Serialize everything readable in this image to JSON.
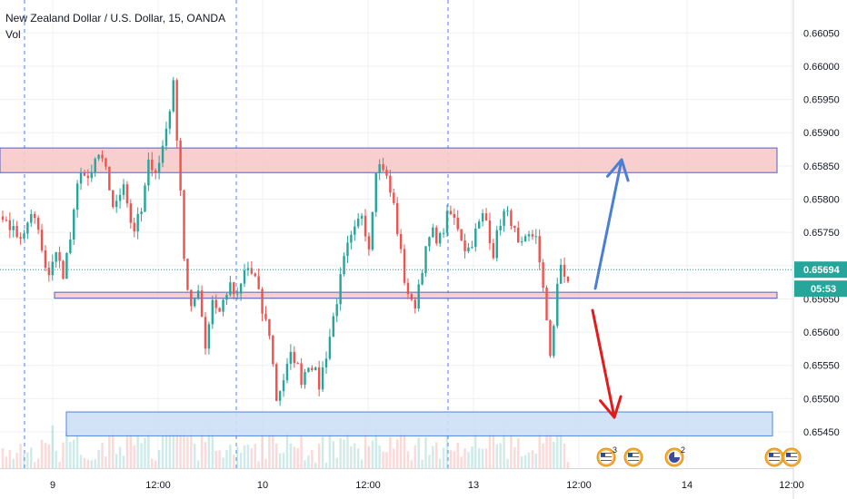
{
  "header": {
    "title": "New Zealand Dollar / U.S. Dollar, 15, OANDA",
    "volume_label": "Vol"
  },
  "colors": {
    "up": "#26a69a",
    "down": "#ef5350",
    "zone_red_fill": "#f9c9c9",
    "zone_red_border": "#3f51b5",
    "zone_blue_fill": "#cfe0f7",
    "zone_blue_border": "#3f78d8",
    "arrow_up": "#4a7fd6",
    "arrow_down": "#e31b1b",
    "current_price": "#26a69a",
    "session_line": "#2962ff",
    "grid": "#eef0f3",
    "axis_text": "#131722"
  },
  "chart_data": {
    "type": "candlestick",
    "title": "New Zealand Dollar / U.S. Dollar, 15, OANDA",
    "ylim": [
      0.6542,
      0.66075
    ],
    "y_ticks": [
      "0.65450",
      "0.65500",
      "0.65550",
      "0.65600",
      "0.65650",
      "0.65700",
      "0.65750",
      "0.65800",
      "0.65850",
      "0.65900",
      "0.65950",
      "0.66000",
      "0.66050"
    ],
    "x_ticks": [
      "9",
      "12:00",
      "10",
      "12:00",
      "13",
      "12:00",
      "14",
      "12:00"
    ],
    "current_price": {
      "value": 0.65694,
      "label": "0.65694",
      "countdown": "05:53"
    },
    "zones": [
      {
        "name": "resistance",
        "top": 0.65877,
        "bottom": 0.6584,
        "color": "red"
      },
      {
        "name": "support",
        "top": 0.6566,
        "bottom": 0.65651,
        "color": "red"
      },
      {
        "name": "demand",
        "top": 0.6548,
        "bottom": 0.65444,
        "color": "blue"
      }
    ],
    "events": [
      {
        "icon": "us-flag-icon",
        "count": "3"
      },
      {
        "icon": "us-flag-icon",
        "count": ""
      },
      {
        "icon": "clock-icon",
        "count": "2"
      },
      {
        "icon": "us-flag-icon",
        "count": ""
      },
      {
        "icon": "us-flag-icon",
        "count": ""
      }
    ],
    "candle_segments": [
      {
        "prices": [
          0.6578,
          0.6575,
          0.6577,
          0.6573,
          0.6575,
          0.6576,
          0.6578,
          0.6575
        ],
        "n": 10
      },
      {
        "prices": [
          0.6575,
          0.6568,
          0.6572,
          0.6569
        ],
        "n": 7
      },
      {
        "prices": [
          0.6569,
          0.6575,
          0.6585,
          0.6582,
          0.6587,
          0.6584
        ],
        "n": 12
      },
      {
        "prices": [
          0.6584,
          0.6578,
          0.6583,
          0.6575,
          0.6578
        ],
        "n": 10
      },
      {
        "prices": [
          0.6578,
          0.6586,
          0.6584,
          0.659,
          0.6597
        ],
        "n": 9
      },
      {
        "prices": [
          0.6597,
          0.6585,
          0.6568,
          0.6563
        ],
        "n": 5
      },
      {
        "prices": [
          0.6563,
          0.6567,
          0.6558,
          0.6565,
          0.6563
        ],
        "n": 8
      },
      {
        "prices": [
          0.6563,
          0.6567,
          0.6565,
          0.657,
          0.6568
        ],
        "n": 10
      },
      {
        "prices": [
          0.6568,
          0.6563,
          0.656,
          0.655,
          0.6553
        ],
        "n": 8
      },
      {
        "prices": [
          0.6553,
          0.6557,
          0.6553,
          0.6556,
          0.6552
        ],
        "n": 10
      },
      {
        "prices": [
          0.6552,
          0.6558,
          0.6565,
          0.6572,
          0.6575
        ],
        "n": 10
      },
      {
        "prices": [
          0.6575,
          0.6578,
          0.6573,
          0.6585,
          0.6585
        ],
        "n": 8
      },
      {
        "prices": [
          0.6585,
          0.6579,
          0.6568
        ],
        "n": 6
      },
      {
        "prices": [
          0.6568,
          0.6563,
          0.657,
          0.6575,
          0.6574
        ],
        "n": 10
      },
      {
        "prices": [
          0.6574,
          0.6578,
          0.6576,
          0.6572,
          0.6575
        ],
        "n": 10
      },
      {
        "prices": [
          0.6575,
          0.6578,
          0.6572,
          0.6578,
          0.6577
        ],
        "n": 10
      },
      {
        "prices": [
          0.6577,
          0.6572,
          0.6574,
          0.6575
        ],
        "n": 7
      },
      {
        "prices": [
          0.6575,
          0.6568,
          0.6563,
          0.6556,
          0.6565,
          0.657
        ],
        "n": 7
      },
      {
        "prices": [
          0.657,
          0.6568,
          0.6566
        ],
        "n": 3
      }
    ]
  }
}
